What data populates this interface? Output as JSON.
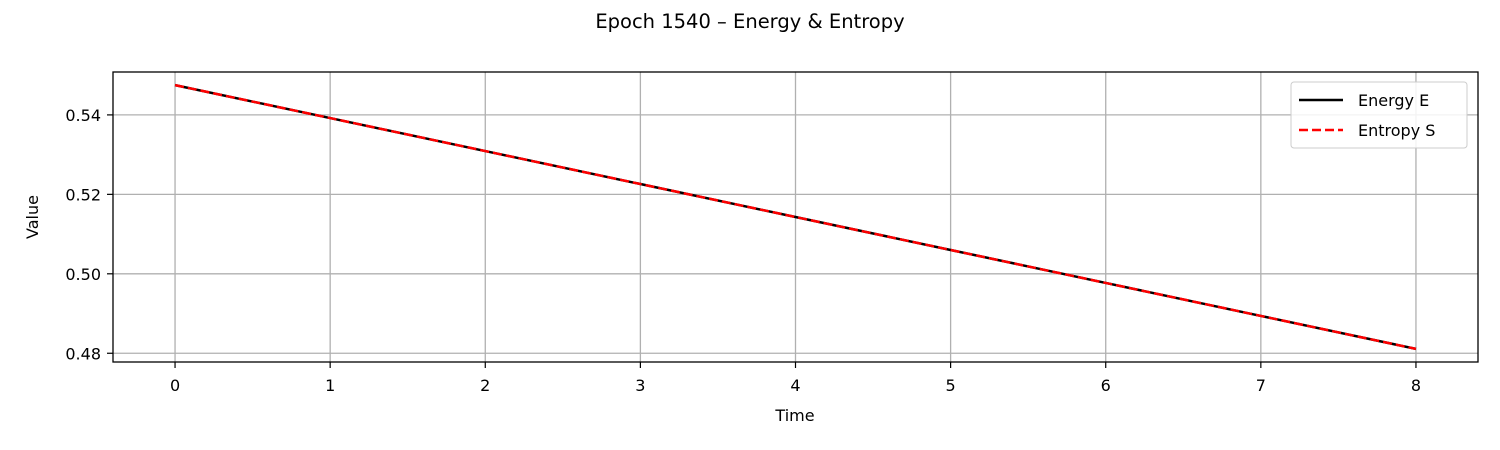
{
  "chart_data": {
    "type": "line",
    "title": "Epoch 1540 – Energy & Entropy",
    "xlabel": "Time",
    "ylabel": "Value",
    "xlim": [
      -0.4,
      8.4
    ],
    "ylim": [
      0.4778,
      0.5508
    ],
    "x_ticks": [
      0,
      1,
      2,
      3,
      4,
      5,
      6,
      7,
      8
    ],
    "x_tick_labels": [
      "0",
      "1",
      "2",
      "3",
      "4",
      "5",
      "6",
      "7",
      "8"
    ],
    "y_ticks": [
      0.48,
      0.5,
      0.52,
      0.54
    ],
    "y_tick_labels": [
      "0.48",
      "0.50",
      "0.52",
      "0.54"
    ],
    "grid": true,
    "legend_position": "top-right",
    "x": [
      0,
      1,
      2,
      3,
      4,
      5,
      6,
      7,
      8
    ],
    "series": [
      {
        "name": "Energy E",
        "color": "#000000",
        "style": "solid",
        "values": [
          0.5475,
          0.5392,
          0.5309,
          0.5226,
          0.5143,
          0.506,
          0.4977,
          0.4894,
          0.4811
        ]
      },
      {
        "name": "Entropy S",
        "color": "#ff0000",
        "style": "dashed",
        "values": [
          0.5475,
          0.5392,
          0.5309,
          0.5226,
          0.5143,
          0.506,
          0.4977,
          0.4894,
          0.4811
        ]
      }
    ]
  }
}
